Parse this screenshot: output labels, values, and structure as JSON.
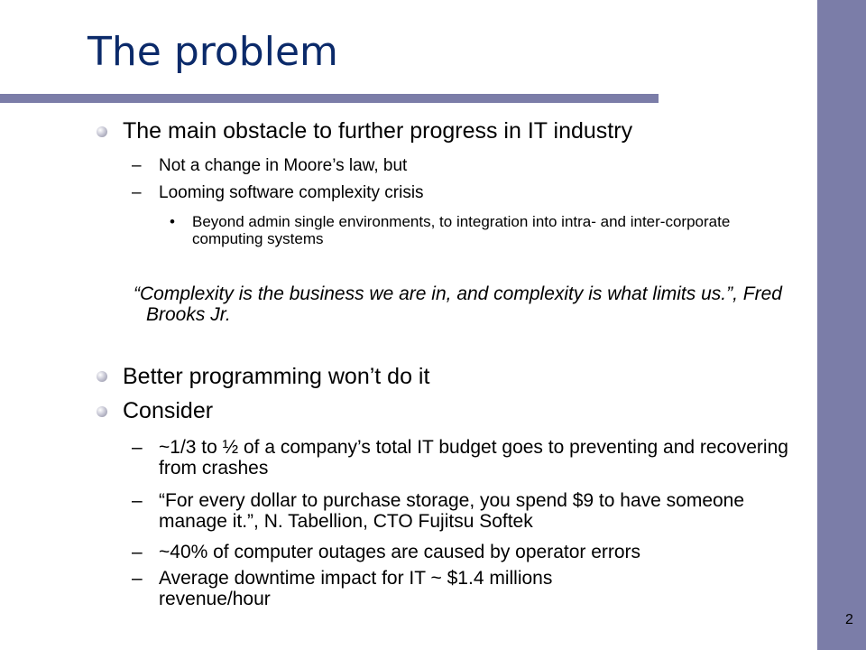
{
  "slide": {
    "title": "The problem",
    "page_number": "2",
    "accent_color": "#7b7da8",
    "title_color": "#0b2a6a"
  },
  "content": {
    "point1": "The main obstacle to further progress in IT industry",
    "point1_subs": [
      "Not a change in Moore’s law, but",
      "Looming software complexity crisis"
    ],
    "point1_subsub": "Beyond admin single environments, to integration into intra- and inter-corporate computing systems",
    "quote": "“Complexity is the business we are in, and complexity is what limits us.”, Fred Brooks Jr.",
    "point2": "Better programming won’t do it",
    "point3": "Consider",
    "point3_subs": [
      "~1/3 to ½ of a company’s total IT budget goes to preventing and recovering from crashes",
      "“For every dollar to purchase storage, you spend $9 to have someone manage it.”, N. Tabellion, CTO Fujitsu Softek",
      "~40% of computer outages are caused by operator errors",
      "Average downtime impact for IT ~ $1.4 millions revenue/hour"
    ],
    "dash": "–",
    "dot": "•"
  }
}
